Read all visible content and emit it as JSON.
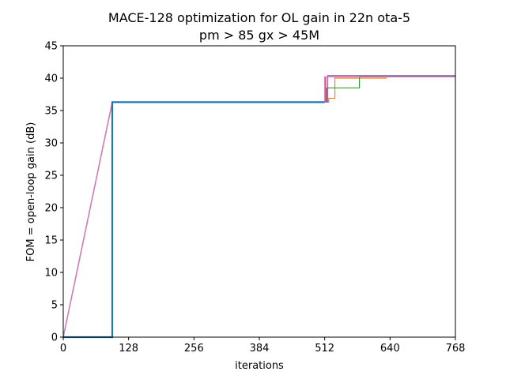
{
  "chart_data": {
    "type": "line",
    "title": [
      "MACE-128 optimization for OL gain in 22n ota-5",
      "pm > 85 gx > 45M"
    ],
    "xlabel": "iterations",
    "ylabel": "FOM = open-loop gain (dB)",
    "xlim": [
      0,
      768
    ],
    "ylim": [
      0,
      45
    ],
    "xticks": [
      0,
      128,
      256,
      384,
      512,
      640,
      768
    ],
    "yticks": [
      0,
      5,
      10,
      15,
      20,
      25,
      30,
      35,
      40,
      45
    ],
    "grid": false,
    "legend": "none",
    "step": true,
    "series": [
      {
        "color": "#d62728",
        "width": 1.2,
        "x": [
          0,
          96,
          96,
          514,
          514,
          768
        ],
        "y": [
          0,
          36.3,
          36.3,
          36.3,
          40.2,
          40.2
        ]
      },
      {
        "color": "#ff7f0e",
        "width": 1.2,
        "x": [
          0,
          96,
          96,
          520,
          520,
          532,
          532,
          632,
          632,
          768
        ],
        "y": [
          0,
          36.3,
          36.3,
          36.3,
          36.9,
          36.9,
          40.0,
          40.0,
          40.3,
          40.3
        ]
      },
      {
        "color": "#2ca02c",
        "width": 1.2,
        "x": [
          0,
          96,
          96,
          516,
          516,
          580,
          580,
          768
        ],
        "y": [
          0,
          36.3,
          36.3,
          36.3,
          38.5,
          38.5,
          40.3,
          40.3
        ]
      },
      {
        "color": "#9467bd",
        "width": 1.2,
        "x": [
          0,
          96,
          96,
          518,
          518,
          768
        ],
        "y": [
          0,
          36.3,
          36.3,
          36.3,
          40.4,
          40.4
        ]
      },
      {
        "color": "#e377c2",
        "width": 1.2,
        "x": [
          0,
          96,
          96,
          512,
          512,
          768
        ],
        "y": [
          0,
          36.3,
          36.3,
          36.3,
          40.2,
          40.2
        ]
      },
      {
        "color": "#1f77b4",
        "width": 2.2,
        "x": [
          0,
          96,
          96,
          512
        ],
        "y": [
          0,
          0,
          36.3,
          36.3
        ]
      }
    ]
  }
}
